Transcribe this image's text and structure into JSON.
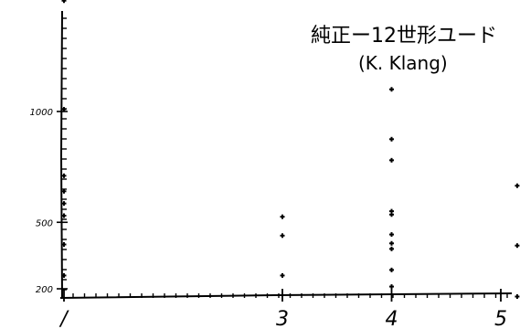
{
  "chart_data": {
    "type": "scatter",
    "title": "純正ー12世形ユード",
    "subtitle": "(K. Klang)",
    "xlabel": "",
    "ylabel": "",
    "xlim": [
      1,
      5.5
    ],
    "ylim": [
      150,
      1600
    ],
    "x_ticks": [
      {
        "value": 1,
        "label": "/"
      },
      {
        "value": 3,
        "label": "3"
      },
      {
        "value": 4,
        "label": "4"
      },
      {
        "value": 5,
        "label": "5"
      }
    ],
    "y_ticks": [
      {
        "value": 200,
        "label": "200"
      },
      {
        "value": 500,
        "label": "500"
      },
      {
        "value": 1000,
        "label": "1000"
      }
    ],
    "grid": false,
    "series": [
      {
        "points": [
          {
            "x": 1,
            "y": 1500
          },
          {
            "x": 1,
            "y": 1010
          },
          {
            "x": 1,
            "y": 710
          },
          {
            "x": 1,
            "y": 640
          },
          {
            "x": 1,
            "y": 585
          },
          {
            "x": 1,
            "y": 530
          },
          {
            "x": 1,
            "y": 400
          },
          {
            "x": 1,
            "y": 260
          },
          {
            "x": 3,
            "y": 525
          },
          {
            "x": 3,
            "y": 440
          },
          {
            "x": 3,
            "y": 260
          },
          {
            "x": 4,
            "y": 1100
          },
          {
            "x": 4,
            "y": 875
          },
          {
            "x": 4,
            "y": 780
          },
          {
            "x": 4,
            "y": 550
          },
          {
            "x": 4,
            "y": 535
          },
          {
            "x": 4,
            "y": 445
          },
          {
            "x": 4,
            "y": 405
          },
          {
            "x": 4,
            "y": 380
          },
          {
            "x": 4,
            "y": 285
          },
          {
            "x": 4,
            "y": 210
          },
          {
            "x": 5.15,
            "y": 665
          },
          {
            "x": 5.15,
            "y": 395
          },
          {
            "x": 5.15,
            "y": 165
          }
        ]
      }
    ]
  }
}
